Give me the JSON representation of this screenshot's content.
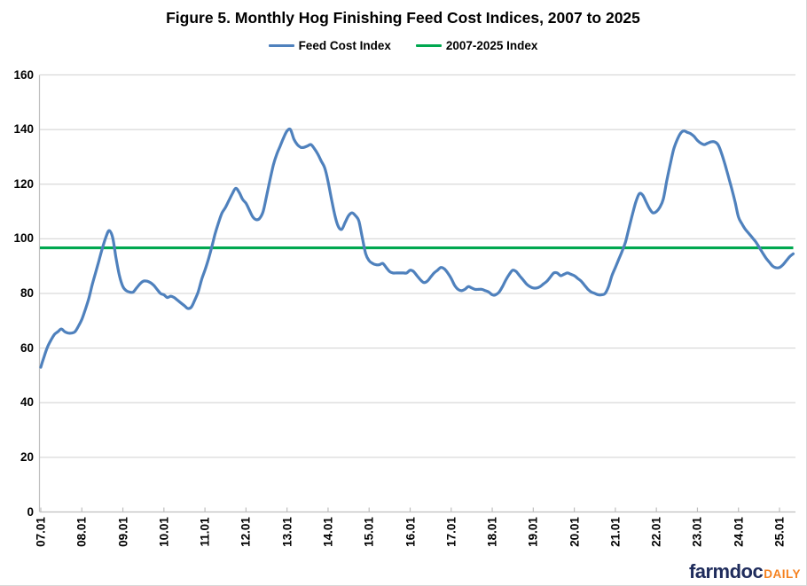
{
  "watermark": {
    "brand": "farmdoc",
    "suffix": "DAILY",
    "brand_color": "#1f2c5c",
    "suffix_color": "#f58220"
  },
  "chart_data": {
    "type": "line",
    "title": "Figure 5.  Monthly Hog Finishing Feed Cost Indices, 2007 to 2025",
    "x_start": "2007-01",
    "x_end": "2025-05",
    "x_frequency": "monthly",
    "x_tick_labels": [
      "07.01",
      "08.01",
      "09.01",
      "10.01",
      "11.01",
      "12.01",
      "13.01",
      "14.01",
      "15.01",
      "16.01",
      "17.01",
      "18.01",
      "19.01",
      "20.01",
      "21.01",
      "22.01",
      "23.01",
      "24.01",
      "25.01"
    ],
    "x_tick_rotation": 90,
    "y_ticks": [
      0,
      20,
      40,
      60,
      80,
      100,
      120,
      140,
      160
    ],
    "ylim": [
      0,
      160
    ],
    "grid": "horizontal",
    "legend_position": "top",
    "colors": {
      "grid": "#d9d9d9",
      "axis": "#bfbfbf"
    },
    "series": [
      {
        "name": "Feed Cost Index",
        "kind": "line",
        "color": "#4f81bd",
        "monthly_values": [
          53,
          57,
          60.5,
          63,
          65,
          66,
          67,
          66,
          65.5,
          65.5,
          66,
          68,
          70.5,
          74,
          78,
          83,
          87.5,
          92,
          96.5,
          100.5,
          103,
          100.5,
          93,
          86.5,
          82.5,
          81,
          80.5,
          80.5,
          82,
          83.5,
          84.5,
          84.5,
          84,
          83,
          81.5,
          80,
          79.5,
          78.5,
          79,
          78.5,
          77.5,
          76.5,
          75.5,
          74.5,
          75,
          77.5,
          80.5,
          85,
          88.5,
          92.5,
          97,
          102,
          106,
          109.5,
          111.5,
          114,
          116.5,
          118.5,
          117,
          114.5,
          113,
          110.5,
          108,
          107,
          107.5,
          110,
          115.5,
          121.5,
          127,
          131,
          134,
          137,
          139.5,
          140,
          136.5,
          134.5,
          133.5,
          133.5,
          134,
          134.5,
          133,
          131,
          128.5,
          126,
          121,
          114.5,
          108.5,
          104.5,
          103.5,
          106,
          108.5,
          109.5,
          108.5,
          106.5,
          100.5,
          94.5,
          92,
          91,
          90.5,
          90.5,
          91,
          89.5,
          88,
          87.5,
          87.5,
          87.5,
          87.5,
          87.5,
          88.5,
          88,
          86.5,
          85,
          84,
          84.5,
          86,
          87.5,
          88.5,
          89.5,
          89,
          87.5,
          85.5,
          83,
          81.5,
          81,
          81.5,
          82.5,
          82,
          81.5,
          81.5,
          81.5,
          81,
          80.5,
          79.5,
          79.5,
          80.5,
          82.5,
          85,
          87,
          88.5,
          88,
          86.5,
          85,
          83.5,
          82.5,
          82,
          82,
          82.5,
          83.5,
          84.5,
          86,
          87.5,
          87.5,
          86.5,
          87,
          87.5,
          87,
          86.5,
          85.5,
          84.5,
          83,
          81.5,
          80.5,
          80,
          79.5,
          79.5,
          80,
          82.5,
          86.5,
          89.5,
          92.5,
          95.5,
          99,
          104,
          109,
          113.5,
          116.5,
          116,
          113.5,
          111,
          109.5,
          110,
          111.5,
          114.5,
          121,
          127,
          132.5,
          136,
          138.5,
          139.5,
          139,
          138.5,
          137.5,
          136,
          135,
          134.5,
          135,
          135.5,
          135.5,
          134.5,
          131.5,
          127.5,
          123,
          118.5,
          113.5,
          108,
          105.5,
          103.5,
          102,
          100.5,
          99,
          97,
          95,
          93,
          91.5,
          90,
          89.4,
          89.5,
          90.5,
          92,
          93.5,
          94.5
        ]
      },
      {
        "name": "2007-2025 Index",
        "kind": "hline",
        "color": "#00a850",
        "value": 96.7
      }
    ]
  }
}
